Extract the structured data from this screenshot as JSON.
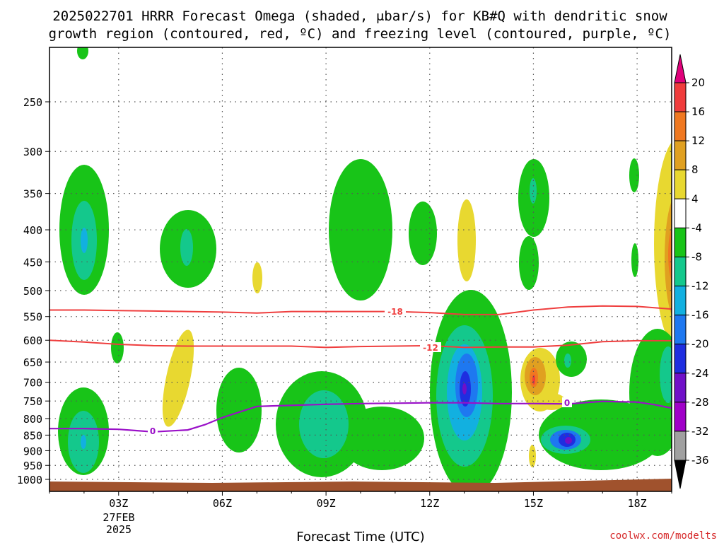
{
  "chart_data": {
    "type": "time-height cross section",
    "title_line1": "2025022701 HRRR Forecast Omega (shaded, μbar/s) for KB#Q with dendritic snow",
    "title_line2": "growth region (contoured, red, ºC) and freezing level (contoured, purple, ºC)",
    "xlabel": "Forecast Time (UTC)",
    "x_ticks": [
      "03Z",
      "06Z",
      "09Z",
      "12Z",
      "15Z",
      "18Z"
    ],
    "x_tick_hours": [
      3,
      6,
      9,
      12,
      15,
      18
    ],
    "x_date_lines": [
      "27FEB",
      "2025"
    ],
    "xlim_hours": [
      1.0,
      19.0
    ],
    "y_ticks": [
      250,
      300,
      350,
      400,
      450,
      500,
      550,
      600,
      650,
      700,
      750,
      800,
      850,
      900,
      950,
      1000
    ],
    "ylim_hpa": [
      1010,
      200
    ],
    "grid": "dotted",
    "colorbar": {
      "placement": "right",
      "tick_labels": [
        "20",
        "16",
        "12",
        "8",
        "4",
        "-4",
        "-8",
        "-12",
        "-16",
        "-20",
        "-24",
        "-28",
        "-32",
        "-36"
      ],
      "colors": [
        "#e0007a",
        "#f03c3c",
        "#f07820",
        "#e0a020",
        "#e8d830",
        "#ffffff",
        "#18c418",
        "#14c88c",
        "#12b0e0",
        "#1e78f0",
        "#1e2ee0",
        "#7010c8",
        "#a000c8",
        "#a0a0a0",
        "#000000"
      ]
    },
    "contour_labels": {
      "dgz_upper": "-18",
      "dgz_lower": "-12",
      "freezing": "0"
    },
    "dgz_upper_isotherm": {
      "hours": [
        1,
        2,
        3,
        4,
        5,
        6,
        7,
        8,
        9,
        10,
        11,
        12,
        13,
        14,
        15,
        16,
        17,
        18,
        19
      ],
      "hpa": [
        537,
        537,
        538,
        539,
        540,
        541,
        543,
        540,
        540,
        540,
        540,
        542,
        546,
        546,
        537,
        531,
        529,
        530,
        535
      ]
    },
    "dgz_lower_isotherm": {
      "hours": [
        1,
        2,
        3,
        4,
        5,
        6,
        7,
        8,
        9,
        10,
        11,
        12,
        13,
        14,
        15,
        16,
        17,
        18,
        19
      ],
      "hpa": [
        600,
        604,
        609,
        612,
        613,
        613,
        613,
        613,
        616,
        614,
        613,
        612,
        616,
        615,
        615,
        611,
        603,
        601,
        601
      ]
    },
    "freezing_level": {
      "hours": [
        1,
        2,
        3,
        3.5,
        4,
        5,
        5.5,
        6,
        7,
        8,
        9,
        10,
        11,
        12,
        13,
        14,
        15,
        16,
        17,
        18,
        18.5,
        19
      ],
      "hpa": [
        830,
        830,
        832,
        836,
        840,
        834,
        818,
        797,
        765,
        762,
        759,
        757,
        756,
        755,
        755,
        757,
        757,
        758,
        751,
        753,
        760,
        770
      ]
    },
    "source": "coolwx.com/modelts"
  }
}
